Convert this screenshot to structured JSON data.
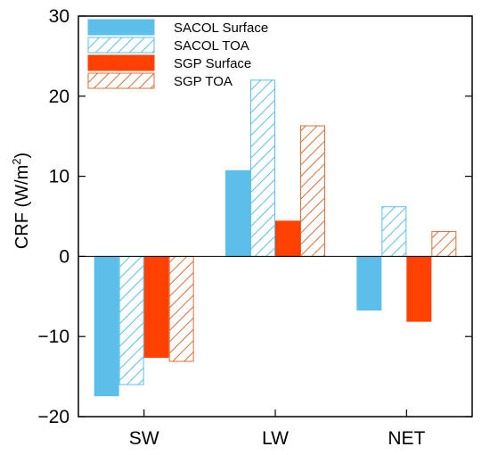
{
  "chart_data": {
    "type": "bar",
    "categories": [
      "SW",
      "LW",
      "NET"
    ],
    "ylabel_main": "CRF (W/m",
    "ylabel_sup": "2",
    "ylabel_end": ")",
    "ylim": [
      -20,
      30
    ],
    "yticks": [
      -20,
      -10,
      0,
      10,
      20,
      30
    ],
    "ytick_labels": [
      "−20",
      "−10",
      "0",
      "10",
      "20",
      "30"
    ],
    "legend_position": "top-left",
    "grid": false,
    "series": [
      {
        "name": "SACOL Surface",
        "values": [
          -17.4,
          10.7,
          -6.7
        ],
        "color": "#5bbfea",
        "pattern": "solid"
      },
      {
        "name": "SACOL TOA",
        "values": [
          -16.0,
          22.0,
          6.2
        ],
        "color": "#5bbfea",
        "pattern": "hatch"
      },
      {
        "name": "SGP Surface",
        "values": [
          -12.6,
          4.4,
          -8.1
        ],
        "color": "#ff4000",
        "pattern": "solid"
      },
      {
        "name": "SGP TOA",
        "values": [
          -13.1,
          16.3,
          3.1
        ],
        "color": "#d9703a",
        "pattern": "hatch"
      }
    ]
  }
}
